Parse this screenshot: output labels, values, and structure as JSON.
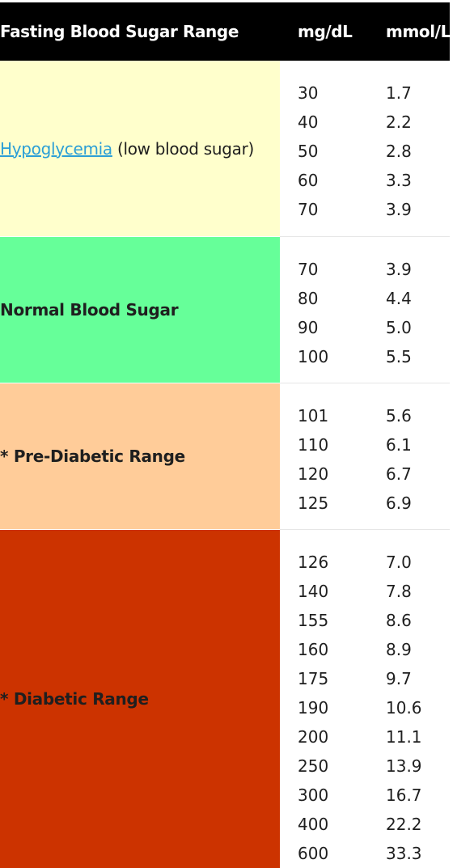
{
  "header": {
    "range_label": "Fasting Blood Sugar Range",
    "mg_label": "mg/dL",
    "mmol_label": "mmol/L"
  },
  "rows": [
    {
      "link": "Hypoglycemia",
      "suffix": "(low blood sugar)",
      "color": "#ffffcc",
      "mg": [
        "30",
        "40",
        "50",
        "60",
        "70"
      ],
      "mmol": [
        "1.7",
        "2.2",
        "2.8",
        "3.3",
        "3.9"
      ]
    },
    {
      "label": "Normal Blood Sugar",
      "color": "#66ff99",
      "mg": [
        "70",
        "80",
        "90",
        "100"
      ],
      "mmol": [
        "3.9",
        "4.4",
        "5.0",
        "5.5"
      ]
    },
    {
      "label": "* Pre-Diabetic Range",
      "color": "#ffcc99",
      "mg": [
        "101",
        "110",
        "120",
        "125"
      ],
      "mmol": [
        "5.6",
        "6.1",
        "6.7",
        "6.9"
      ]
    },
    {
      "label": "* Diabetic Range",
      "color": "#cc3300",
      "mg": [
        "126",
        "140",
        "155",
        "160",
        "175",
        "190",
        "200",
        "250",
        "300",
        "400",
        "600"
      ],
      "mmol": [
        "7.0",
        "7.8",
        "8.6",
        "8.9",
        "9.7",
        "10.6",
        "11.1",
        "13.9",
        "16.7",
        "22.2",
        "33.3"
      ]
    }
  ]
}
